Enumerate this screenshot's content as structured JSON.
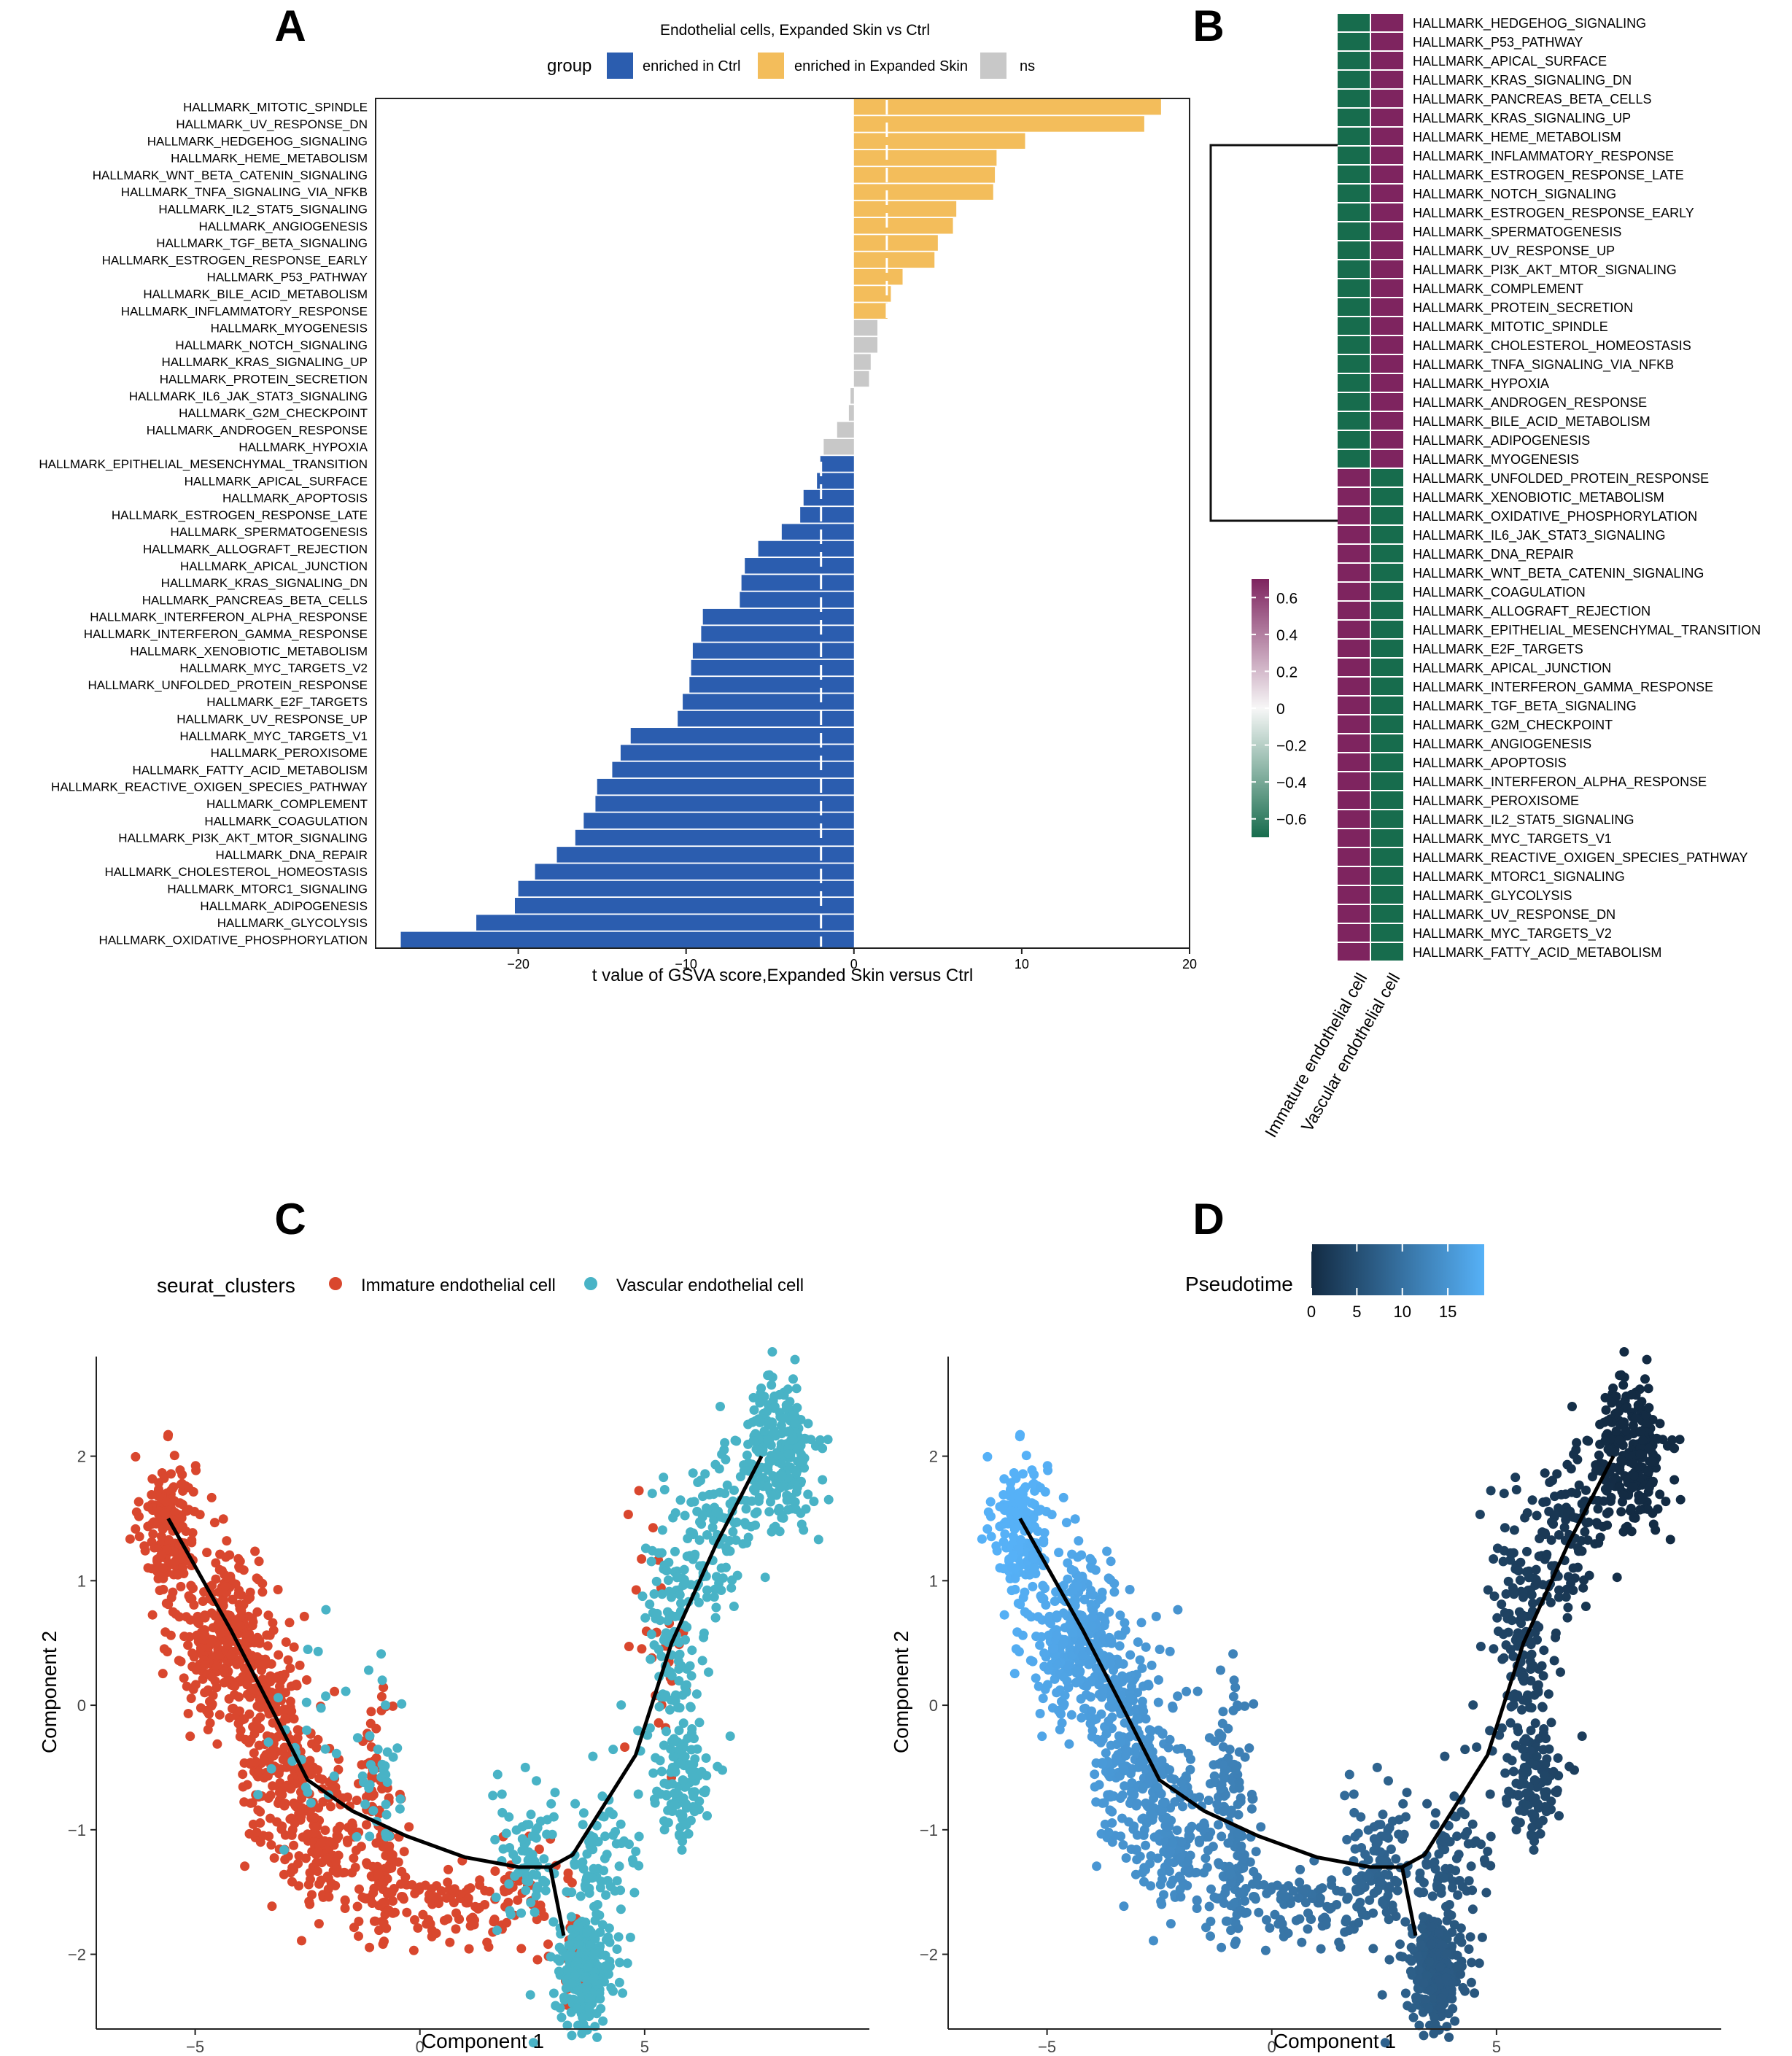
{
  "panels": {
    "a": "A",
    "b": "B",
    "c": "C",
    "d": "D"
  },
  "colors": {
    "ctrl": "#2B5DAF",
    "expanded": "#F3BD5B",
    "ns": "#C8C8C8",
    "immature": "#D9472E",
    "vascular": "#49B3C6",
    "heat_high": "#7E245F",
    "heat_low": "#176C4D"
  },
  "chart_data": [
    {
      "id": "A",
      "type": "bar",
      "title": "Endothelial cells, Expanded Skin vs Ctrl",
      "legend_title": "group",
      "legend": [
        "enriched in Ctrl",
        "enriched in Expanded Skin",
        "ns"
      ],
      "xlabel": "t value of GSVA score,Expanded Skin versus Ctrl",
      "xlim": [
        -28.5,
        20
      ],
      "xticks": [
        -20,
        -10,
        0,
        10,
        20
      ],
      "threshold_lines": [
        -1.96,
        1.96
      ],
      "categories": [
        "HALLMARK_MITOTIC_SPINDLE",
        "HALLMARK_UV_RESPONSE_DN",
        "HALLMARK_HEDGEHOG_SIGNALING",
        "HALLMARK_HEME_METABOLISM",
        "HALLMARK_WNT_BETA_CATENIN_SIGNALING",
        "HALLMARK_TNFA_SIGNALING_VIA_NFKB",
        "HALLMARK_IL2_STAT5_SIGNALING",
        "HALLMARK_ANGIOGENESIS",
        "HALLMARK_TGF_BETA_SIGNALING",
        "HALLMARK_ESTROGEN_RESPONSE_EARLY",
        "HALLMARK_P53_PATHWAY",
        "HALLMARK_BILE_ACID_METABOLISM",
        "HALLMARK_INFLAMMATORY_RESPONSE",
        "HALLMARK_MYOGENESIS",
        "HALLMARK_NOTCH_SIGNALING",
        "HALLMARK_KRAS_SIGNALING_UP",
        "HALLMARK_PROTEIN_SECRETION",
        "HALLMARK_IL6_JAK_STAT3_SIGNALING",
        "HALLMARK_G2M_CHECKPOINT",
        "HALLMARK_ANDROGEN_RESPONSE",
        "HALLMARK_HYPOXIA",
        "HALLMARK_EPITHELIAL_MESENCHYMAL_TRANSITION",
        "HALLMARK_APICAL_SURFACE",
        "HALLMARK_APOPTOSIS",
        "HALLMARK_ESTROGEN_RESPONSE_LATE",
        "HALLMARK_SPERMATOGENESIS",
        "HALLMARK_ALLOGRAFT_REJECTION",
        "HALLMARK_APICAL_JUNCTION",
        "HALLMARK_KRAS_SIGNALING_DN",
        "HALLMARK_PANCREAS_BETA_CELLS",
        "HALLMARK_INTERFERON_ALPHA_RESPONSE",
        "HALLMARK_INTERFERON_GAMMA_RESPONSE",
        "HALLMARK_XENOBIOTIC_METABOLISM",
        "HALLMARK_MYC_TARGETS_V2",
        "HALLMARK_UNFOLDED_PROTEIN_RESPONSE",
        "HALLMARK_E2F_TARGETS",
        "HALLMARK_UV_RESPONSE_UP",
        "HALLMARK_MYC_TARGETS_V1",
        "HALLMARK_PEROXISOME",
        "HALLMARK_FATTY_ACID_METABOLISM",
        "HALLMARK_REACTIVE_OXIGEN_SPECIES_PATHWAY",
        "HALLMARK_COMPLEMENT",
        "HALLMARK_COAGULATION",
        "HALLMARK_PI3K_AKT_MTOR_SIGNALING",
        "HALLMARK_DNA_REPAIR",
        "HALLMARK_CHOLESTEROL_HOMEOSTASIS",
        "HALLMARK_MTORC1_SIGNALING",
        "HALLMARK_ADIPOGENESIS",
        "HALLMARK_GLYCOLYSIS",
        "HALLMARK_OXIDATIVE_PHOSPHORYLATION"
      ],
      "values": [
        18.3,
        17.3,
        10.2,
        8.5,
        8.4,
        8.3,
        6.1,
        5.9,
        5.0,
        4.8,
        2.9,
        2.2,
        2.0,
        1.4,
        1.4,
        1.0,
        0.9,
        -0.2,
        -0.3,
        -1.0,
        -1.8,
        -2.0,
        -2.2,
        -3.0,
        -3.2,
        -4.3,
        -5.7,
        -6.5,
        -6.7,
        -6.8,
        -9.0,
        -9.1,
        -9.6,
        -9.7,
        -9.8,
        -10.2,
        -10.5,
        -13.3,
        -13.9,
        -14.4,
        -15.3,
        -15.4,
        -16.1,
        -16.6,
        -17.7,
        -19.0,
        -20.0,
        -20.2,
        -22.5,
        -27.0
      ],
      "groups": [
        "Expanded",
        "Expanded",
        "Expanded",
        "Expanded",
        "Expanded",
        "Expanded",
        "Expanded",
        "Expanded",
        "Expanded",
        "Expanded",
        "Expanded",
        "Expanded",
        "Expanded",
        "ns",
        "ns",
        "ns",
        "ns",
        "ns",
        "ns",
        "ns",
        "ns",
        "Ctrl",
        "Ctrl",
        "Ctrl",
        "Ctrl",
        "Ctrl",
        "Ctrl",
        "Ctrl",
        "Ctrl",
        "Ctrl",
        "Ctrl",
        "Ctrl",
        "Ctrl",
        "Ctrl",
        "Ctrl",
        "Ctrl",
        "Ctrl",
        "Ctrl",
        "Ctrl",
        "Ctrl",
        "Ctrl",
        "Ctrl",
        "Ctrl",
        "Ctrl",
        "Ctrl",
        "Ctrl",
        "Ctrl",
        "Ctrl",
        "Ctrl",
        "Ctrl"
      ]
    },
    {
      "id": "B",
      "type": "heatmap",
      "columns": [
        "Immature endothelial cell",
        "Vascular endothelial cell"
      ],
      "rows": [
        "HALLMARK_HEDGEHOG_SIGNALING",
        "HALLMARK_P53_PATHWAY",
        "HALLMARK_APICAL_SURFACE",
        "HALLMARK_KRAS_SIGNALING_DN",
        "HALLMARK_PANCREAS_BETA_CELLS",
        "HALLMARK_KRAS_SIGNALING_UP",
        "HALLMARK_HEME_METABOLISM",
        "HALLMARK_INFLAMMATORY_RESPONSE",
        "HALLMARK_ESTROGEN_RESPONSE_LATE",
        "HALLMARK_NOTCH_SIGNALING",
        "HALLMARK_ESTROGEN_RESPONSE_EARLY",
        "HALLMARK_SPERMATOGENESIS",
        "HALLMARK_UV_RESPONSE_UP",
        "HALLMARK_PI3K_AKT_MTOR_SIGNALING",
        "HALLMARK_COMPLEMENT",
        "HALLMARK_PROTEIN_SECRETION",
        "HALLMARK_MITOTIC_SPINDLE",
        "HALLMARK_CHOLESTEROL_HOMEOSTASIS",
        "HALLMARK_TNFA_SIGNALING_VIA_NFKB",
        "HALLMARK_HYPOXIA",
        "HALLMARK_ANDROGEN_RESPONSE",
        "HALLMARK_BILE_ACID_METABOLISM",
        "HALLMARK_ADIPOGENESIS",
        "HALLMARK_MYOGENESIS",
        "HALLMARK_UNFOLDED_PROTEIN_RESPONSE",
        "HALLMARK_XENOBIOTIC_METABOLISM",
        "HALLMARK_OXIDATIVE_PHOSPHORYLATION",
        "HALLMARK_IL6_JAK_STAT3_SIGNALING",
        "HALLMARK_DNA_REPAIR",
        "HALLMARK_WNT_BETA_CATENIN_SIGNALING",
        "HALLMARK_COAGULATION",
        "HALLMARK_ALLOGRAFT_REJECTION",
        "HALLMARK_EPITHELIAL_MESENCHYMAL_TRANSITION",
        "HALLMARK_E2F_TARGETS",
        "HALLMARK_APICAL_JUNCTION",
        "HALLMARK_INTERFERON_GAMMA_RESPONSE",
        "HALLMARK_TGF_BETA_SIGNALING",
        "HALLMARK_G2M_CHECKPOINT",
        "HALLMARK_ANGIOGENESIS",
        "HALLMARK_APOPTOSIS",
        "HALLMARK_INTERFERON_ALPHA_RESPONSE",
        "HALLMARK_PEROXISOME",
        "HALLMARK_IL2_STAT5_SIGNALING",
        "HALLMARK_MYC_TARGETS_V1",
        "HALLMARK_REACTIVE_OXIGEN_SPECIES_PATHWAY",
        "HALLMARK_MTORC1_SIGNALING",
        "HALLMARK_GLYCOLYSIS",
        "HALLMARK_UV_RESPONSE_DN",
        "HALLMARK_MYC_TARGETS_V2",
        "HALLMARK_FATTY_ACID_METABOLISM"
      ],
      "split_after_row": 24,
      "first_cluster_values": [
        -0.7,
        0.7
      ],
      "second_cluster_values": [
        0.7,
        -0.7
      ],
      "colorbar_ticks": [
        0.6,
        0.4,
        0.2,
        0,
        -0.2,
        -0.4,
        -0.6
      ],
      "colorbar_tick_labels": [
        "0.6",
        "0.4",
        "0.2",
        "0",
        "−0.2",
        "−0.4",
        "−0.6"
      ],
      "colorbar_range": [
        -0.7,
        0.7
      ]
    },
    {
      "id": "C",
      "type": "scatter",
      "legend_title": "seurat_clusters",
      "legend": [
        "Immature endothelial cell",
        "Vascular endothelial cell"
      ],
      "xlabel": "Component 1",
      "ylabel": "Component 2",
      "xlim": [
        -7.2,
        10
      ],
      "ylim": [
        -2.6,
        2.8
      ],
      "xticks": [
        -5,
        0,
        5
      ],
      "yticks": [
        -2,
        -1,
        0,
        1,
        2
      ],
      "trajectory": [
        [
          -5.6,
          1.5
        ],
        [
          -4.2,
          0.6
        ],
        [
          -3.2,
          -0.1
        ],
        [
          -2.5,
          -0.6
        ],
        [
          -1.5,
          -0.85
        ],
        [
          -0.3,
          -1.05
        ],
        [
          1.0,
          -1.22
        ],
        [
          2.2,
          -1.3
        ],
        [
          2.9,
          -1.3
        ],
        [
          3.4,
          -1.2
        ],
        [
          4.8,
          -0.4
        ],
        [
          5.6,
          0.5
        ],
        [
          6.6,
          1.3
        ],
        [
          7.6,
          2.0
        ]
      ],
      "branch": [
        [
          2.9,
          -1.3
        ],
        [
          3.2,
          -1.85
        ]
      ],
      "clusters": [
        {
          "label": "Immature endothelial cell",
          "cx": -5.6,
          "cy": 1.45,
          "sx": 0.3,
          "sy": 0.28,
          "n": 180
        },
        {
          "label": "Immature endothelial cell",
          "cx": -4.3,
          "cy": 0.55,
          "sx": 0.55,
          "sy": 0.35,
          "n": 320
        },
        {
          "label": "Immature endothelial cell",
          "cx": -3.2,
          "cy": -0.3,
          "sx": 0.45,
          "sy": 0.4,
          "n": 220
        },
        {
          "label": "Immature endothelial cell",
          "cx": -2.2,
          "cy": -1.05,
          "sx": 0.45,
          "sy": 0.3,
          "n": 150
        },
        {
          "label": "Immature endothelial cell",
          "cx": -0.8,
          "cy": -1.45,
          "sx": 0.3,
          "sy": 0.25,
          "n": 90
        },
        {
          "label": "Immature endothelial cell",
          "cx": -1.0,
          "cy": -0.55,
          "sx": 0.2,
          "sy": 0.3,
          "n": 45
        },
        {
          "label": "Immature endothelial cell",
          "cx": 0.6,
          "cy": -1.65,
          "sx": 0.5,
          "sy": 0.17,
          "n": 60
        },
        {
          "label": "Immature endothelial cell",
          "cx": 2.3,
          "cy": -1.5,
          "sx": 0.55,
          "sy": 0.2,
          "n": 55
        },
        {
          "label": "Immature endothelial cell",
          "cx": 3.4,
          "cy": -2.05,
          "sx": 0.15,
          "sy": 0.25,
          "n": 22
        },
        {
          "label": "Immature endothelial cell",
          "cx": 5.3,
          "cy": 0.6,
          "sx": 0.3,
          "sy": 0.55,
          "n": 30
        },
        {
          "label": "Vascular endothelial cell",
          "cx": -2.6,
          "cy": -0.2,
          "sx": 0.5,
          "sy": 0.4,
          "n": 25
        },
        {
          "label": "Vascular endothelial cell",
          "cx": -0.8,
          "cy": -0.5,
          "sx": 0.3,
          "sy": 0.35,
          "n": 35
        },
        {
          "label": "Vascular endothelial cell",
          "cx": 2.4,
          "cy": -1.2,
          "sx": 0.4,
          "sy": 0.3,
          "n": 70
        },
        {
          "label": "Vascular endothelial cell",
          "cx": 4.0,
          "cy": -1.35,
          "sx": 0.45,
          "sy": 0.3,
          "n": 80
        },
        {
          "label": "Vascular endothelial cell",
          "cx": 3.7,
          "cy": -2.15,
          "sx": 0.3,
          "sy": 0.2,
          "n": 220
        },
        {
          "label": "Vascular endothelial cell",
          "cx": 5.8,
          "cy": -0.6,
          "sx": 0.35,
          "sy": 0.25,
          "n": 110
        },
        {
          "label": "Vascular endothelial cell",
          "cx": 5.6,
          "cy": 0.6,
          "sx": 0.35,
          "sy": 0.6,
          "n": 120
        },
        {
          "label": "Vascular endothelial cell",
          "cx": 6.6,
          "cy": 1.3,
          "sx": 0.4,
          "sy": 0.35,
          "n": 90
        },
        {
          "label": "Vascular endothelial cell",
          "cx": 7.9,
          "cy": 2.0,
          "sx": 0.45,
          "sy": 0.3,
          "n": 260
        }
      ]
    },
    {
      "id": "D",
      "type": "scatter",
      "legend_title": "Pseudotime",
      "colorbar_ticks": [
        0,
        5,
        10,
        15
      ],
      "colorbar_range": [
        0,
        19
      ],
      "xlabel": "Component 1",
      "ylabel": "Component 2",
      "xlim": [
        -7.2,
        10
      ],
      "ylim": [
        -2.6,
        2.8
      ],
      "xticks": [
        -5,
        0,
        5
      ],
      "yticks": [
        -2,
        -1,
        0,
        1,
        2
      ],
      "note": "same points as panel C, coloured by pseudotime (low at top-right, high at top-left)"
    }
  ]
}
